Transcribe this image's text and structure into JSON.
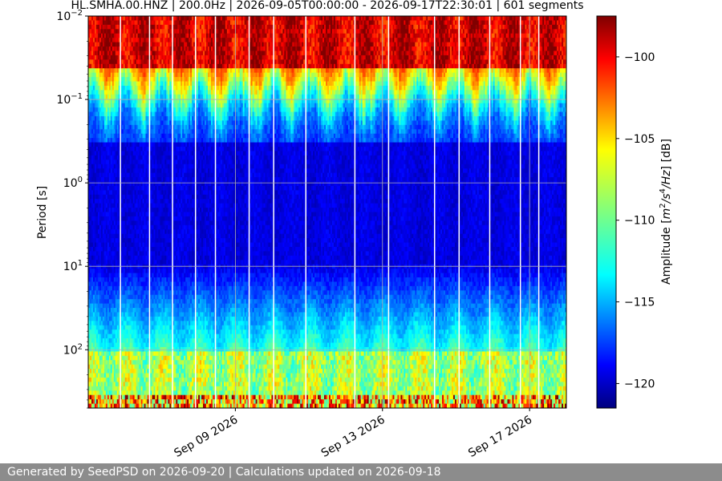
{
  "chart_data": {
    "type": "heatmap",
    "title": "HL.SMHA.00.HNZ | 200.0Hz | 2026-09-05T00:00:00 - 2026-09-17T22:30:01 | 601 segments",
    "xlabel": "",
    "ylabel": "Period [s]",
    "y_scale": "log",
    "y_inverted": true,
    "ylim_period_s": [
      0.01,
      500
    ],
    "xlim": [
      "2026-09-05T00:00:00",
      "2026-09-18T00:00:00"
    ],
    "x_tick_labels": [
      "Sep 09 2026",
      "Sep 13 2026",
      "Sep 17 2026"
    ],
    "x_tick_dates": [
      "2026-09-09",
      "2026-09-13",
      "2026-09-17"
    ],
    "y_ticks": [
      {
        "value": 0.01,
        "base": "10",
        "exp": "−2"
      },
      {
        "value": 0.1,
        "base": "10",
        "exp": "−1"
      },
      {
        "value": 1,
        "base": "10",
        "exp": "0"
      },
      {
        "value": 10,
        "base": "10",
        "exp": "1"
      },
      {
        "value": 100,
        "base": "10",
        "exp": "2"
      }
    ],
    "grid": true,
    "colormap": "jet",
    "colorbar": {
      "label_prefix": "Amplitude [",
      "label_m": "m",
      "label_m_exp": "2",
      "label_s": "/s",
      "label_s_exp": "4",
      "label_hz": "/Hz",
      "label_suffix": "] [dB]",
      "range_db": [
        -121.5,
        -97.5
      ],
      "ticks": [
        "−100",
        "−105",
        "−110",
        "−115",
        "−120"
      ],
      "tick_values": [
        -100,
        -105,
        -110,
        -115,
        -120
      ]
    },
    "data_gaps": [
      "2026-09-05T21:00",
      "2026-09-06T16:00",
      "2026-09-07T07:00",
      "2026-09-07T22:00",
      "2026-09-08T11:00",
      "2026-09-09T09:00",
      "2026-09-10T01:00",
      "2026-09-10T22:00",
      "2026-09-12T06:00",
      "2026-09-13T04:00",
      "2026-09-14T10:00",
      "2026-09-15T02:00",
      "2026-09-15T22:00",
      "2026-09-16T18:00",
      "2026-09-17T06:00"
    ],
    "segments": 601,
    "sampling_rate": "200.0Hz",
    "channel": "HL.SMHA.00.HNZ"
  },
  "footer": {
    "text": "Generated by SeedPSD on 2026-09-20 | Calculations updated on 2026-09-18"
  }
}
